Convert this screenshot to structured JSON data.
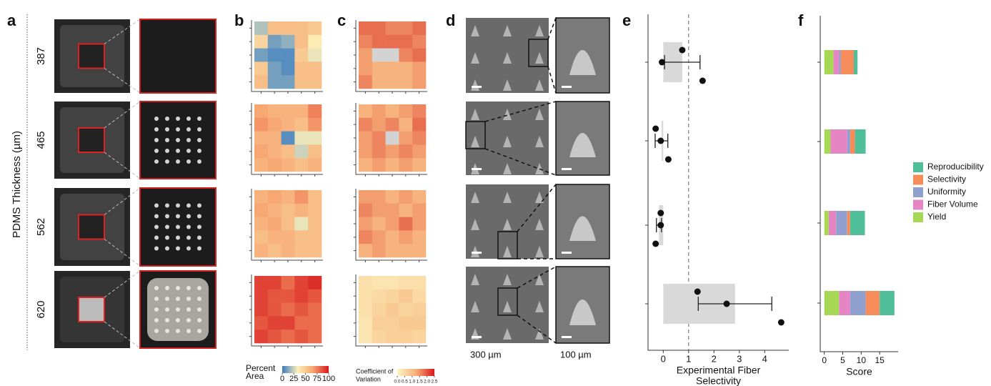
{
  "panel_labels": [
    "a",
    "b",
    "c",
    "d",
    "e",
    "f"
  ],
  "thickness_axis": {
    "label": "PDMS Thickness (µm)",
    "categories": [
      "387",
      "465",
      "562",
      "620"
    ]
  },
  "scale_bars": [
    "300 µm",
    "100 µm"
  ],
  "chart_data": [
    {
      "type": "heatmap",
      "matrices": [
        [
          [
            20,
            55,
            55,
            55,
            50
          ],
          [
            45,
            10,
            15,
            55,
            35
          ],
          [
            10,
            5,
            5,
            50,
            30
          ],
          [
            50,
            10,
            5,
            55,
            55
          ],
          [
            55,
            10,
            10,
            55,
            55
          ]
        ],
        [
          [
            65,
            60,
            60,
            60,
            75
          ],
          [
            70,
            65,
            60,
            55,
            70
          ],
          [
            60,
            60,
            5,
            30,
            30
          ],
          [
            65,
            60,
            55,
            25,
            55
          ],
          [
            60,
            65,
            60,
            55,
            60
          ]
        ],
        [
          [
            60,
            65,
            60,
            70,
            55
          ],
          [
            65,
            60,
            55,
            60,
            55
          ],
          [
            60,
            65,
            55,
            30,
            55
          ],
          [
            55,
            60,
            60,
            55,
            55
          ],
          [
            60,
            55,
            60,
            55,
            55
          ]
        ],
        [
          [
            90,
            90,
            80,
            90,
            95
          ],
          [
            90,
            85,
            85,
            90,
            85
          ],
          [
            90,
            85,
            80,
            85,
            80
          ],
          [
            85,
            90,
            90,
            80,
            80
          ],
          [
            90,
            85,
            80,
            85,
            80
          ]
        ]
      ],
      "colormap": [
        "#3a7cc0",
        "#fcefb9",
        "#f6a36e",
        "#d7191c"
      ],
      "clim": [
        0,
        100
      ],
      "colorbar_label": [
        "Percent",
        "Area"
      ],
      "colorbar_ticks": [
        0,
        25,
        50,
        75,
        100
      ]
    },
    {
      "type": "heatmap",
      "matrices": [
        [
          [
            1.8,
            1.8,
            1.6,
            1.6,
            1.8
          ],
          [
            1.6,
            1.8,
            1.8,
            1.8,
            1.6
          ],
          [
            1.4,
            null,
            null,
            1.6,
            1.8
          ],
          [
            1.4,
            1.2,
            1.2,
            1.2,
            1.4
          ],
          [
            1.6,
            1.2,
            1.2,
            1.2,
            1.4
          ]
        ],
        [
          [
            1.2,
            1.4,
            1.2,
            1.4,
            1.6
          ],
          [
            1.6,
            1.4,
            1.6,
            1.2,
            1.8
          ],
          [
            1.4,
            1.6,
            null,
            1.4,
            1.6
          ],
          [
            1.4,
            1.6,
            1.4,
            1.6,
            1.4
          ],
          [
            1.2,
            1.4,
            1.2,
            1.4,
            1.2
          ]
        ],
        [
          [
            1.4,
            1.4,
            1.2,
            1.4,
            1.2
          ],
          [
            1.6,
            1.4,
            1.4,
            1.2,
            1.4
          ],
          [
            1.4,
            1.2,
            1.4,
            1.8,
            1.4
          ],
          [
            1.6,
            1.4,
            1.2,
            1.4,
            1.2
          ],
          [
            1.2,
            1.4,
            1.2,
            1.2,
            1.2
          ]
        ],
        [
          [
            0.4,
            0.3,
            0.3,
            0.4,
            0.4
          ],
          [
            0.4,
            0.5,
            0.6,
            0.8,
            0.5
          ],
          [
            0.4,
            0.6,
            0.8,
            0.6,
            0.7
          ],
          [
            0.3,
            0.7,
            0.7,
            0.8,
            0.8
          ],
          [
            0.3,
            0.6,
            0.7,
            0.7,
            0.6
          ]
        ]
      ],
      "colormap": [
        "#fdf5c0",
        "#f6b07a",
        "#d7191c"
      ],
      "null_color": "#d3d3d3",
      "clim": [
        0,
        2.5
      ],
      "colorbar_label": [
        "Coefficient of",
        "Variation"
      ],
      "colorbar_ticks": [
        {
          "value": 0,
          "label": "0.0"
        },
        0.5,
        {
          "value": 1,
          "label": "1.0"
        },
        1.5,
        {
          "value": 2,
          "label": "2.0"
        },
        2.5
      ]
    },
    {
      "type": "dot-errorbar",
      "xlabel": [
        "Experimental Fiber",
        "Selectivity"
      ],
      "xlim": [
        -0.6,
        4.95
      ],
      "xticks": [
        0,
        1,
        2,
        3,
        4
      ],
      "reference_line": 1,
      "bar_color": "#d9d9d9",
      "values": [
        0.75,
        -0.07,
        -0.17,
        2.83
      ],
      "errors": [
        0.7,
        0.25,
        0.1,
        1.45
      ],
      "points": [
        [
          0.75,
          -0.05,
          1.55
        ],
        [
          -0.3,
          -0.1,
          0.2
        ],
        [
          -0.1,
          -0.1,
          -0.3
        ],
        [
          1.35,
          2.5,
          4.65
        ]
      ]
    },
    {
      "type": "stacked-barh",
      "xlabel": "Score",
      "xlim": [
        -1.1,
        20
      ],
      "xticks": [
        0,
        5,
        10,
        15
      ],
      "series": [
        {
          "name": "Yield",
          "color": "#a6d856",
          "values": [
            2.5,
            1.7,
            1.2,
            4
          ]
        },
        {
          "name": "Fiber Volume",
          "color": "#e585c4",
          "values": [
            1.5,
            4.5,
            2,
            3
          ]
        },
        {
          "name": "Uniformity",
          "color": "#8fa0cf",
          "values": [
            0.5,
            0.8,
            3,
            4.2
          ]
        },
        {
          "name": "Selectivity",
          "color": "#f58c5a",
          "values": [
            3.5,
            1.3,
            0.8,
            3.8
          ]
        },
        {
          "name": "Reproducibility",
          "color": "#4fbf9a",
          "values": [
            1,
            2.9,
            4,
            4
          ]
        }
      ]
    }
  ]
}
